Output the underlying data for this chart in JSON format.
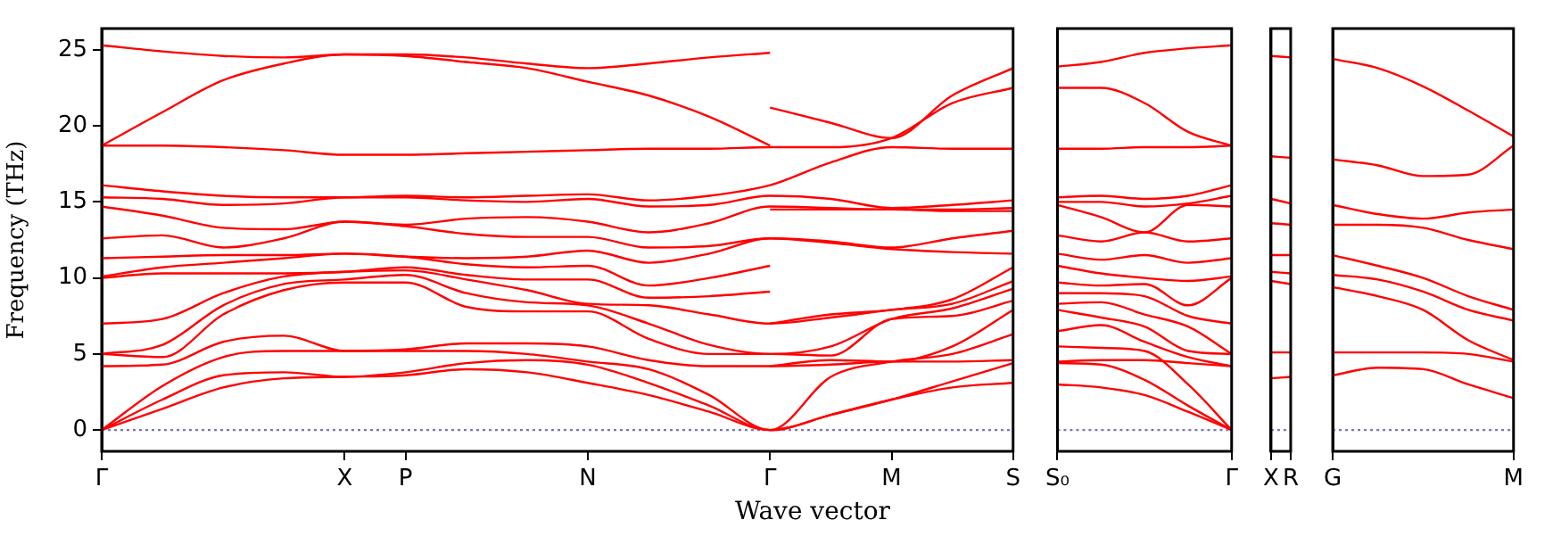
{
  "chart_data": [
    {
      "type": "line",
      "color": "#ff0000",
      "ylabel": "Frequency (THz)",
      "xlabel": "Wave vector",
      "ylim": [
        -1.4,
        26.4
      ],
      "yticks": [
        0,
        5,
        10,
        15,
        20,
        25
      ],
      "categories": [
        "Γ",
        null,
        null,
        null,
        "X",
        "P",
        null,
        null,
        "N",
        null,
        null,
        "Γ",
        null,
        "M",
        null,
        "S"
      ],
      "ref_lines": [
        {
          "axis": "y",
          "value": 0,
          "color": "#7777bb",
          "line_style": "dotted"
        }
      ],
      "series": [
        {
          "values": [
            0,
            1.4,
            2.8,
            3.4,
            3.5,
            3.6,
            4.0,
            3.8,
            3.1,
            2.3,
            1.2,
            0,
            1.0,
            2.0,
            2.8,
            3.1
          ]
        },
        {
          "values": [
            0,
            2.0,
            3.6,
            3.8,
            3.5,
            3.8,
            4.4,
            4.6,
            4.3,
            3.1,
            1.6,
            0,
            1.0,
            2.0,
            3.2,
            4.4
          ]
        },
        {
          "values": [
            0,
            2.9,
            4.8,
            5.2,
            5.2,
            5.2,
            5.2,
            5.0,
            4.5,
            4.0,
            2.3,
            0,
            3.5,
            4.5,
            5.0,
            6.3
          ]
        },
        {
          "values": [
            4.2,
            4.3,
            5.8,
            6.2,
            5.2,
            5.3,
            5.7,
            5.7,
            5.5,
            4.6,
            4.2,
            4.2,
            4.3,
            4.5,
            4.5,
            4.6
          ]
        },
        {
          "values": [
            5.0,
            4.8,
            7.6,
            9.2,
            9.7,
            9.7,
            8.1,
            7.8,
            7.8,
            6.0,
            5.0,
            5.0,
            4.9,
            7.3,
            7.5,
            8.5
          ]
        },
        {
          "values": [
            5.0,
            5.6,
            8.2,
            9.6,
            9.9,
            10.2,
            9.0,
            8.4,
            8.2,
            7.0,
            5.6,
            5.0,
            5.5,
            7.3,
            8.0,
            9.3
          ]
        },
        {
          "values": [
            7.0,
            7.3,
            9.0,
            10.1,
            10.4,
            10.5,
            9.9,
            9.2,
            8.3,
            8.2,
            7.6,
            7.0,
            7.4,
            7.9,
            8.3,
            9.8
          ]
        },
        {
          "values": [
            10.0,
            10.3,
            10.3,
            10.3,
            10.4,
            10.7,
            10.2,
            9.9,
            9.9,
            8.7,
            8.8,
            9.1,
            null,
            null,
            null,
            null
          ]
        },
        {
          "values": [
            10.1,
            10.7,
            11.0,
            11.3,
            11.6,
            11.4,
            10.9,
            10.7,
            10.8,
            9.5,
            10.0,
            10.8,
            null,
            null,
            null,
            null
          ]
        },
        {
          "values": [
            11.3,
            11.4,
            11.5,
            11.5,
            11.6,
            11.4,
            11.3,
            11.4,
            11.8,
            11.0,
            11.6,
            12.6,
            12.3,
            11.9,
            11.7,
            11.6
          ]
        },
        {
          "values": [
            12.6,
            12.8,
            12.0,
            12.6,
            13.7,
            13.4,
            12.9,
            12.7,
            12.7,
            12.0,
            12.1,
            12.6,
            12.4,
            12.0,
            12.6,
            13.1
          ]
        },
        {
          "values": [
            14.7,
            14.1,
            13.3,
            13.2,
            13.7,
            13.5,
            13.9,
            14.0,
            13.7,
            13.0,
            13.6,
            14.7,
            14.6,
            14.5,
            14.5,
            14.6
          ]
        },
        {
          "values": [
            15.3,
            15.2,
            14.8,
            14.9,
            15.3,
            15.3,
            15.1,
            15.0,
            15.2,
            14.7,
            14.8,
            15.4,
            15.2,
            14.6,
            14.8,
            15.1
          ]
        },
        {
          "values": [
            16.1,
            15.7,
            15.4,
            15.3,
            15.3,
            15.4,
            15.3,
            15.4,
            15.5,
            15.1,
            15.4,
            16.1,
            17.6,
            18.6,
            18.5,
            18.5
          ]
        },
        {
          "values": [
            18.7,
            18.7,
            18.6,
            18.4,
            18.1,
            18.1,
            18.2,
            18.3,
            18.4,
            18.5,
            18.5,
            18.6,
            18.6,
            19.2,
            21.5,
            22.5
          ]
        },
        {
          "values": [
            18.7,
            20.9,
            23.0,
            24.1,
            24.7,
            24.6,
            24.2,
            23.8,
            22.9,
            22.0,
            20.6,
            18.7,
            null,
            null,
            null,
            null
          ]
        },
        {
          "values": [
            25.3,
            24.9,
            24.6,
            24.5,
            24.7,
            24.7,
            24.5,
            24.1,
            23.8,
            24.1,
            24.5,
            24.8,
            null,
            null,
            null,
            null
          ]
        },
        {
          "values": [
            null,
            null,
            null,
            null,
            null,
            null,
            null,
            null,
            null,
            null,
            null,
            4.2,
            4.6,
            4.5,
            5.5,
            7.9
          ]
        },
        {
          "values": [
            null,
            null,
            null,
            null,
            null,
            null,
            null,
            null,
            null,
            null,
            null,
            7.0,
            7.6,
            7.9,
            8.6,
            10.7
          ]
        },
        {
          "values": [
            null,
            null,
            null,
            null,
            null,
            null,
            null,
            null,
            null,
            null,
            null,
            14.5,
            14.5,
            14.5,
            14.4,
            14.4
          ]
        },
        {
          "values": [
            null,
            null,
            null,
            null,
            null,
            null,
            null,
            null,
            null,
            null,
            null,
            21.2,
            20.2,
            19.2,
            22.0,
            23.8
          ]
        }
      ]
    },
    {
      "type": "line",
      "color": "#ff0000",
      "tick_labels": "x",
      "ylim": [
        -1.4,
        26.4
      ],
      "yticks": [
        0,
        5,
        10,
        15,
        20,
        25
      ],
      "categories": [
        "S₀",
        null,
        null,
        null,
        "Γ"
      ],
      "ref_lines": [
        {
          "axis": "y",
          "value": 0,
          "color": "#7777bb",
          "line_style": "dotted"
        }
      ],
      "series": [
        {
          "values": [
            3.0,
            2.8,
            2.3,
            1.2,
            0
          ]
        },
        {
          "values": [
            4.4,
            4.3,
            3.3,
            1.6,
            0
          ]
        },
        {
          "values": [
            4.5,
            4.6,
            4.6,
            4.4,
            4.2
          ]
        },
        {
          "values": [
            5.5,
            5.4,
            5.2,
            3.0,
            0
          ]
        },
        {
          "values": [
            6.5,
            6.9,
            5.8,
            4.8,
            4.2
          ]
        },
        {
          "values": [
            7.9,
            7.4,
            6.8,
            5.2,
            5.0
          ]
        },
        {
          "values": [
            8.3,
            8.4,
            7.6,
            6.8,
            5.0
          ]
        },
        {
          "values": [
            9.0,
            9.0,
            8.8,
            7.5,
            7.0
          ]
        },
        {
          "values": [
            9.7,
            9.5,
            9.6,
            8.2,
            10.0
          ]
        },
        {
          "values": [
            10.8,
            10.3,
            10.0,
            9.8,
            10.1
          ]
        },
        {
          "values": [
            11.6,
            11.2,
            11.5,
            11.0,
            11.3
          ]
        },
        {
          "values": [
            12.8,
            12.4,
            13.0,
            12.4,
            12.6
          ]
        },
        {
          "values": [
            14.8,
            14.0,
            13.0,
            14.8,
            14.7
          ]
        },
        {
          "values": [
            15.0,
            15.0,
            14.7,
            14.9,
            15.4
          ]
        },
        {
          "values": [
            15.3,
            15.4,
            15.2,
            15.4,
            16.1
          ]
        },
        {
          "values": [
            18.5,
            18.5,
            18.6,
            18.6,
            18.7
          ]
        },
        {
          "values": [
            22.5,
            22.5,
            21.5,
            19.6,
            18.7
          ]
        },
        {
          "values": [
            23.9,
            24.2,
            24.8,
            25.1,
            25.3
          ]
        }
      ]
    },
    {
      "type": "line",
      "color": "#ff0000",
      "tick_labels": "x",
      "ylim": [
        -1.4,
        26.4
      ],
      "yticks": [
        0,
        5,
        10,
        15,
        20,
        25
      ],
      "categories": [
        "X",
        "R"
      ],
      "ref_lines": [
        {
          "axis": "y",
          "value": 0,
          "color": "#7777bb",
          "line_style": "dotted"
        }
      ],
      "series": [
        {
          "values": [
            24.6,
            24.5
          ]
        },
        {
          "values": [
            18.0,
            17.9
          ]
        },
        {
          "values": [
            15.2,
            14.9
          ]
        },
        {
          "values": [
            13.6,
            13.5
          ]
        },
        {
          "values": [
            11.5,
            11.5
          ]
        },
        {
          "values": [
            10.4,
            10.3
          ]
        },
        {
          "values": [
            9.8,
            9.6
          ]
        },
        {
          "values": [
            5.1,
            5.1
          ]
        },
        {
          "values": [
            3.4,
            3.5
          ]
        }
      ]
    },
    {
      "type": "line",
      "color": "#ff0000",
      "tick_labels": "x",
      "ylim": [
        -1.4,
        26.4
      ],
      "yticks": [
        0,
        5,
        10,
        15,
        20,
        25
      ],
      "categories": [
        "G",
        null,
        null,
        null,
        "M"
      ],
      "ref_lines": [
        {
          "axis": "y",
          "value": 0,
          "color": "#7777bb",
          "line_style": "dotted"
        }
      ],
      "series": [
        {
          "values": [
            24.4,
            23.8,
            22.6,
            21.0,
            19.3
          ]
        },
        {
          "values": [
            17.8,
            17.4,
            16.7,
            16.8,
            18.7
          ]
        },
        {
          "values": [
            14.8,
            14.2,
            13.9,
            14.3,
            14.5
          ]
        },
        {
          "values": [
            13.5,
            13.5,
            13.3,
            12.5,
            11.9
          ]
        },
        {
          "values": [
            11.5,
            10.8,
            10.0,
            8.8,
            7.9
          ]
        },
        {
          "values": [
            10.2,
            9.9,
            9.1,
            7.9,
            7.2
          ]
        },
        {
          "values": [
            9.4,
            8.8,
            7.9,
            5.9,
            4.6
          ]
        },
        {
          "values": [
            5.1,
            5.1,
            5.1,
            5.0,
            4.5
          ]
        },
        {
          "values": [
            3.6,
            4.1,
            4.0,
            3.0,
            2.1
          ]
        }
      ]
    }
  ]
}
